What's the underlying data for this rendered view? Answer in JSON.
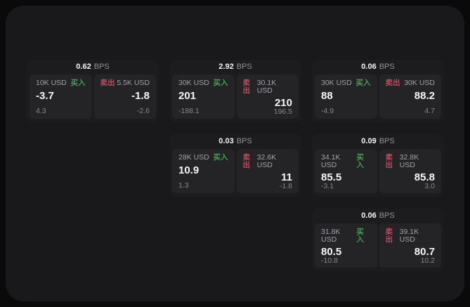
{
  "labels": {
    "bps_unit": "BPS",
    "buy": "买入",
    "sell": "卖出"
  },
  "colors": {
    "page_bg": "#0a0a0b",
    "surface_bg": "#19191b",
    "card_bg": "#1c1c1e",
    "panel_bg": "#242427",
    "buy_green": "#3fa052",
    "sell_red": "#c04a5e",
    "primary_text": "#f4f4f4",
    "muted_text": "#a2a2a6"
  },
  "cards": [
    {
      "bps": "0.62",
      "buy": {
        "notional": "10K USD",
        "price": "-3.7",
        "delta": "4.3"
      },
      "sell": {
        "notional": "5.5K USD",
        "price": "-1.8",
        "delta": "-2.6"
      }
    },
    {
      "bps": "2.92",
      "buy": {
        "notional": "30K USD",
        "price": "201",
        "delta": "-188.1"
      },
      "sell": {
        "notional": "30.1K USD",
        "price": "210",
        "delta": "196.5"
      }
    },
    {
      "bps": "0.06",
      "buy": {
        "notional": "30K USD",
        "price": "88",
        "delta": "-4.9"
      },
      "sell": {
        "notional": "30K USD",
        "price": "88.2",
        "delta": "4.7"
      }
    },
    {
      "bps": "0.03",
      "buy": {
        "notional": "28K USD",
        "price": "10.9",
        "delta": "1.3"
      },
      "sell": {
        "notional": "32.6K USD",
        "price": "11",
        "delta": "-1.8"
      }
    },
    {
      "bps": "0.09",
      "buy": {
        "notional": "34.1K USD",
        "price": "85.5",
        "delta": "-3.1"
      },
      "sell": {
        "notional": "32.8K USD",
        "price": "85.8",
        "delta": "3.0"
      }
    },
    {
      "bps": "0.06",
      "buy": {
        "notional": "31.8K USD",
        "price": "80.5",
        "delta": "-10.8"
      },
      "sell": {
        "notional": "39.1K USD",
        "price": "80.7",
        "delta": "10.2"
      }
    }
  ]
}
